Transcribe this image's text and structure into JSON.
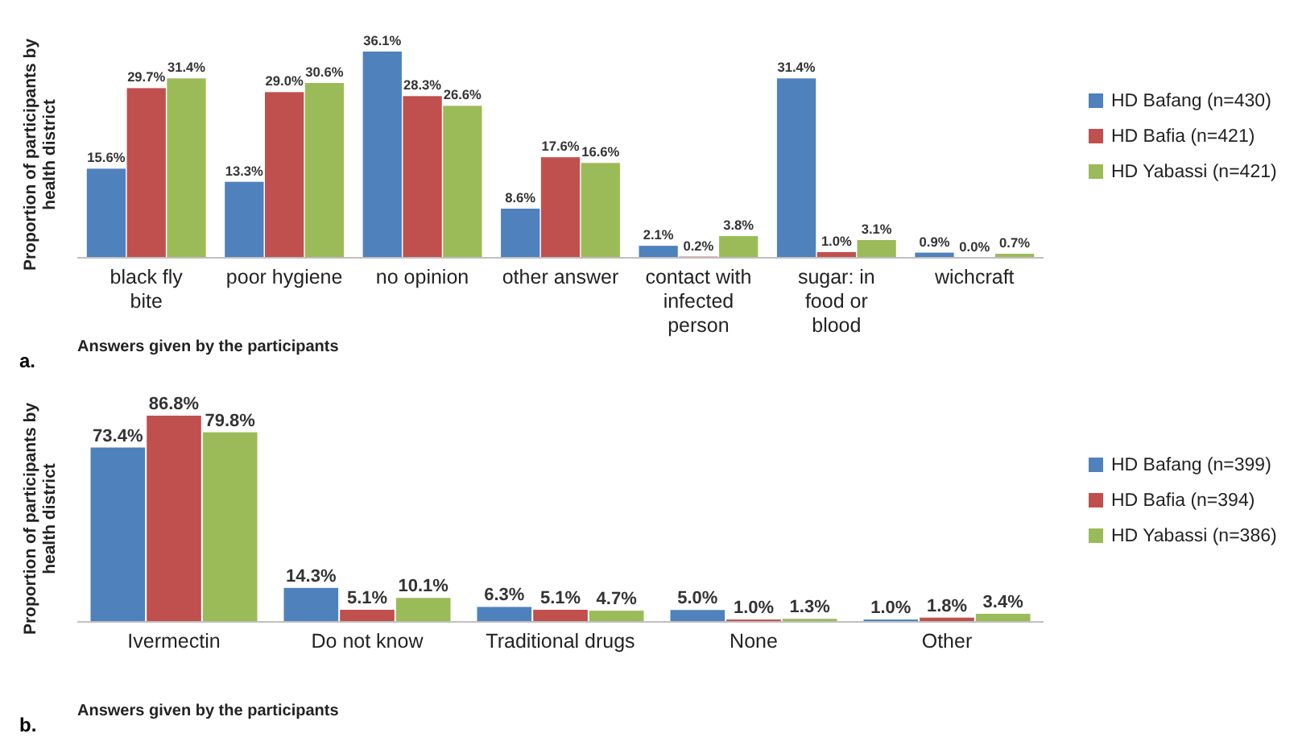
{
  "chart_data": [
    {
      "type": "bar",
      "categories": [
        "black fly bite",
        "poor hygiene",
        "no opinion",
        "other answer",
        "contact with infected person",
        "sugar: in food or blood",
        "wichcraft"
      ],
      "series": [
        {
          "name": "HD Bafang (n=430)",
          "color": "#4f81bd",
          "values": [
            15.6,
            13.3,
            36.1,
            8.6,
            2.1,
            31.4,
            0.9
          ],
          "value_labels": [
            "15.6%",
            "13.3%",
            "36.1%",
            "8.6%",
            "2.1%",
            "31.4%",
            "0.9%"
          ]
        },
        {
          "name": "HD Bafia (n=421)",
          "color": "#c0504d",
          "values": [
            29.7,
            29.0,
            28.3,
            17.6,
            0.2,
            1.0,
            0.0
          ],
          "value_labels": [
            "29.7%",
            "29.0%",
            "28.3%",
            "17.6%",
            "0.2%",
            "1.0%",
            "0.0%"
          ]
        },
        {
          "name": "HD Yabassi (n=421)",
          "color": "#9bbb59",
          "values": [
            31.4,
            30.6,
            26.6,
            16.6,
            3.8,
            3.1,
            0.7
          ],
          "value_labels": [
            "31.4%",
            "30.6%",
            "26.6%",
            "16.6%",
            "3.8%",
            "3.1%",
            "0.7%"
          ]
        }
      ],
      "ylabel": "Proportion of participants by health district",
      "xlabel": "Answers given by the participants",
      "annotations": [
        "a."
      ],
      "legend": "right"
    },
    {
      "type": "bar",
      "categories": [
        "Ivermectin",
        "Do not know",
        "Traditional drugs",
        "None",
        "Other"
      ],
      "series": [
        {
          "name": "HD Bafang (n=399)",
          "color": "#4f81bd",
          "values": [
            73.4,
            14.3,
            6.3,
            5.0,
            1.0
          ],
          "value_labels": [
            "73.4%",
            "14.3%",
            "6.3%",
            "5.0%",
            "1.0%"
          ]
        },
        {
          "name": "HD Bafia (n=394)",
          "color": "#c0504d",
          "values": [
            86.8,
            5.1,
            5.1,
            1.0,
            1.8
          ],
          "value_labels": [
            "86.8%",
            "5.1%",
            "5.1%",
            "1.0%",
            "1.8%"
          ]
        },
        {
          "name": "HD Yabassi (n=386)",
          "color": "#9bbb59",
          "values": [
            79.8,
            10.1,
            4.7,
            1.3,
            3.4
          ],
          "value_labels": [
            "79.8%",
            "10.1%",
            "4.7%",
            "1.3%",
            "3.4%"
          ]
        }
      ],
      "ylabel": "Proportion of participants by health district",
      "xlabel": "Answers given by the participants",
      "annotations": [
        "b."
      ],
      "legend": "right"
    }
  ]
}
